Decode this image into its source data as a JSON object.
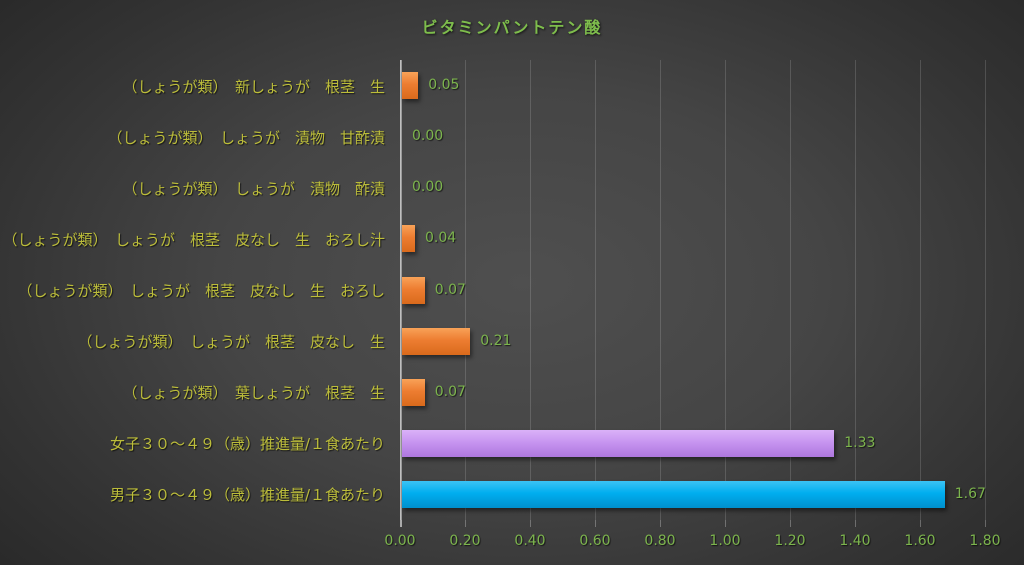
{
  "title": "ビタミンパントテン酸",
  "colors": {
    "title_green": "#7ebd4c",
    "category_yellow": "#bcbd3a",
    "value_green": "#7cb44d",
    "axis_label_green": "#7cb44d",
    "bar_palettes": {
      "orange": {
        "light": "#f9a258",
        "base": "#ed7d31",
        "dark": "#d96a1c"
      },
      "purple": {
        "light": "#dab1f8",
        "base": "#c795f0",
        "dark": "#ae77de"
      },
      "blue": {
        "light": "#3cc3f4",
        "base": "#00aeef",
        "dark": "#0090cd"
      }
    }
  },
  "chart_data": {
    "type": "bar",
    "orientation": "horizontal",
    "title": "ビタミンパントテン酸",
    "categories": [
      "（しょうが類）　新しょうが　根茎　生",
      "（しょうが類）　しょうが　漬物　甘酢漬",
      "（しょうが類）　しょうが　漬物　酢漬",
      "（しょうが類）　しょうが　根茎　皮なし　生　おろし汁",
      "（しょうが類）　しょうが　根茎　皮なし　生　おろし",
      "（しょうが類）　しょうが　根茎　皮なし　生",
      "（しょうが類）　葉しょうが　根茎　生",
      "女子３０～４９（歳）推進量/１食あたり",
      "男子３０～４９（歳）推進量/１食あたり"
    ],
    "values": [
      0.05,
      0.0,
      0.0,
      0.04,
      0.07,
      0.21,
      0.07,
      1.33,
      1.67
    ],
    "value_labels": [
      "0.05",
      "0.00",
      "0.00",
      "0.04",
      "0.07",
      "0.21",
      "0.07",
      "1.33",
      "1.67"
    ],
    "bar_colors": [
      "orange",
      "orange",
      "orange",
      "orange",
      "orange",
      "orange",
      "orange",
      "purple",
      "blue"
    ],
    "xlabel": "",
    "ylabel": "",
    "xlim": [
      0,
      1.8
    ],
    "x_ticks": [
      "0.00",
      "0.20",
      "0.40",
      "0.60",
      "0.80",
      "1.00",
      "1.20",
      "1.40",
      "1.60",
      "1.80"
    ],
    "grid": true,
    "legend": false
  }
}
